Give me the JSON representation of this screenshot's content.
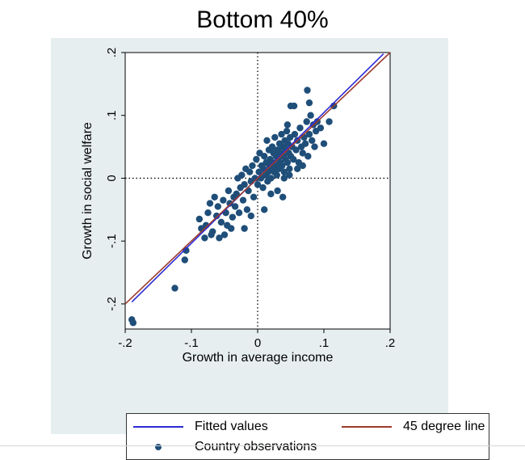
{
  "page": {
    "title": "Bottom 40%"
  },
  "chart_data": {
    "type": "scatter",
    "title": "Bottom 40%",
    "xlabel": "Growth in average income",
    "ylabel": "Growth in social welfare",
    "xlim": [
      -0.2,
      0.2
    ],
    "ylim": [
      -0.24,
      0.2
    ],
    "x_ticks": [
      -0.2,
      -0.1,
      0,
      0.1,
      0.2
    ],
    "x_tick_labels": [
      "-.2",
      "-.1",
      "0",
      ".1",
      ".2"
    ],
    "y_ticks": [
      -0.2,
      -0.1,
      0,
      0.1,
      0.2
    ],
    "y_tick_labels": [
      "-.2",
      "-.1",
      "0",
      ".1",
      ".2"
    ],
    "reference_lines": {
      "x": 0,
      "y": 0,
      "style": "dotted"
    },
    "colors": {
      "points": "#1f4e79",
      "fitted": "#2b2bd6",
      "degree45": "#9c3b2e",
      "panel_bg": "#e6eef0"
    },
    "series": [
      {
        "name": "Country observations",
        "kind": "points",
        "points": [
          [
            -0.19,
            -0.225
          ],
          [
            -0.188,
            -0.23
          ],
          [
            -0.125,
            -0.175
          ],
          [
            -0.11,
            -0.13
          ],
          [
            -0.108,
            -0.115
          ],
          [
            -0.088,
            -0.065
          ],
          [
            -0.085,
            -0.08
          ],
          [
            -0.08,
            -0.095
          ],
          [
            -0.078,
            -0.075
          ],
          [
            -0.075,
            -0.055
          ],
          [
            -0.072,
            -0.04
          ],
          [
            -0.07,
            -0.09
          ],
          [
            -0.068,
            -0.085
          ],
          [
            -0.065,
            -0.03
          ],
          [
            -0.062,
            -0.06
          ],
          [
            -0.06,
            -0.045
          ],
          [
            -0.058,
            -0.095
          ],
          [
            -0.055,
            -0.07
          ],
          [
            -0.052,
            -0.035
          ],
          [
            -0.05,
            -0.09
          ],
          [
            -0.048,
            -0.055
          ],
          [
            -0.046,
            -0.075
          ],
          [
            -0.044,
            -0.02
          ],
          [
            -0.042,
            -0.04
          ],
          [
            -0.04,
            -0.08
          ],
          [
            -0.038,
            -0.062
          ],
          [
            -0.036,
            -0.03
          ],
          [
            -0.034,
            -0.045
          ],
          [
            -0.032,
            -0.025
          ],
          [
            -0.03,
            0.0
          ],
          [
            -0.028,
            -0.055
          ],
          [
            -0.026,
            -0.015
          ],
          [
            -0.024,
            0.005
          ],
          [
            -0.022,
            -0.035
          ],
          [
            -0.02,
            -0.01
          ],
          [
            -0.018,
            0.015
          ],
          [
            -0.016,
            -0.05
          ],
          [
            -0.014,
            -0.02
          ],
          [
            -0.012,
            0.01
          ],
          [
            -0.01,
            -0.005
          ],
          [
            -0.008,
            0.02
          ],
          [
            -0.006,
            -0.03
          ],
          [
            -0.004,
            0.0
          ],
          [
            -0.002,
            0.03
          ],
          [
            0.0,
            -0.01
          ],
          [
            0.002,
            0.01
          ],
          [
            0.003,
            0.04
          ],
          [
            0.005,
            0.0
          ],
          [
            0.006,
            0.02
          ],
          [
            0.008,
            -0.015
          ],
          [
            0.009,
            0.015
          ],
          [
            0.01,
            0.035
          ],
          [
            0.012,
            0.005
          ],
          [
            0.013,
            0.025
          ],
          [
            0.014,
            0.06
          ],
          [
            0.015,
            -0.005
          ],
          [
            0.016,
            0.01
          ],
          [
            0.017,
            0.045
          ],
          [
            0.018,
            0.02
          ],
          [
            0.019,
            0.03
          ],
          [
            0.02,
            0.0
          ],
          [
            0.021,
            0.015
          ],
          [
            0.022,
            0.05
          ],
          [
            0.023,
            0.025
          ],
          [
            0.024,
            0.04
          ],
          [
            0.025,
            0.01
          ],
          [
            0.026,
            0.065
          ],
          [
            0.027,
            0.02
          ],
          [
            0.028,
            0.035
          ],
          [
            0.029,
            0.005
          ],
          [
            0.03,
            0.045
          ],
          [
            0.031,
            0.03
          ],
          [
            0.032,
            0.015
          ],
          [
            0.033,
            0.055
          ],
          [
            0.034,
            0.025
          ],
          [
            0.035,
            0.04
          ],
          [
            0.036,
            0.07
          ],
          [
            0.037,
            0.02
          ],
          [
            0.038,
            0.05
          ],
          [
            0.039,
            0.035
          ],
          [
            0.04,
            0.01
          ],
          [
            0.041,
            0.06
          ],
          [
            0.042,
            0.03
          ],
          [
            0.043,
            0.045
          ],
          [
            0.044,
            0.075
          ],
          [
            0.045,
            0.025
          ],
          [
            0.046,
            0.055
          ],
          [
            0.047,
            0.04
          ],
          [
            0.048,
            0.015
          ],
          [
            0.049,
            0.065
          ],
          [
            0.05,
            0.035
          ],
          [
            0.052,
            0.05
          ],
          [
            0.054,
            0.03
          ],
          [
            0.056,
            0.07
          ],
          [
            0.058,
            0.045
          ],
          [
            0.06,
            0.06
          ],
          [
            0.062,
            0.025
          ],
          [
            0.064,
            0.08
          ],
          [
            0.066,
            0.05
          ],
          [
            0.068,
            0.04
          ],
          [
            0.07,
            0.065
          ],
          [
            0.072,
            0.055
          ],
          [
            0.074,
            0.09
          ],
          [
            0.076,
            0.035
          ],
          [
            0.078,
            0.07
          ],
          [
            0.08,
            0.1
          ],
          [
            0.082,
            0.06
          ],
          [
            0.084,
            0.085
          ],
          [
            0.086,
            0.05
          ],
          [
            0.088,
            0.075
          ],
          [
            0.045,
            0.085
          ],
          [
            0.05,
            0.115
          ],
          [
            0.055,
            0.115
          ],
          [
            0.075,
            0.14
          ],
          [
            0.078,
            0.12
          ],
          [
            0.09,
            0.09
          ],
          [
            0.095,
            0.08
          ],
          [
            0.1,
            0.055
          ],
          [
            0.108,
            0.09
          ],
          [
            0.115,
            0.115
          ],
          [
            0.06,
            0.015
          ],
          [
            0.068,
            0.02
          ],
          [
            0.03,
            -0.02
          ],
          [
            0.038,
            -0.03
          ],
          [
            0.01,
            -0.05
          ],
          [
            0.02,
            -0.025
          ],
          [
            -0.01,
            -0.06
          ],
          [
            -0.02,
            -0.08
          ],
          [
            0.04,
            0.0
          ],
          [
            0.048,
            0.005
          ]
        ]
      },
      {
        "name": "Fitted values",
        "kind": "line",
        "x": [
          -0.19,
          0.19
        ],
        "y": [
          -0.197,
          0.198
        ]
      },
      {
        "name": "45 degree line",
        "kind": "line",
        "x": [
          -0.2,
          0.2
        ],
        "y": [
          -0.2,
          0.2
        ]
      }
    ],
    "legend": {
      "placement": "bottom",
      "entries": [
        "Fitted values",
        "45 degree line",
        "Country observations"
      ]
    }
  }
}
